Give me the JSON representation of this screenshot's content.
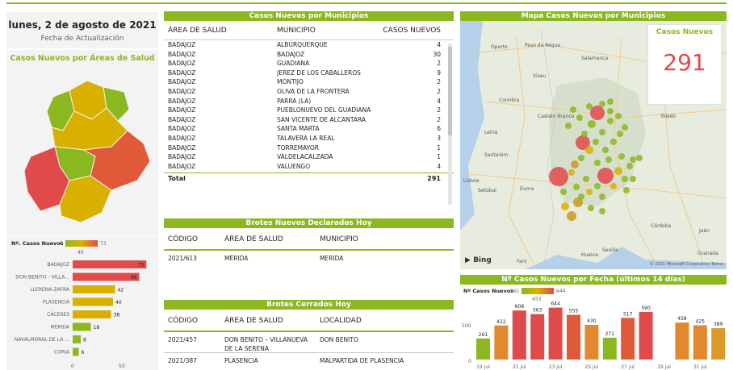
{
  "date": {
    "title": "lunes, 2 de agosto de 2021",
    "subtitle": "Fecha de Actualización"
  },
  "areas_map": {
    "title": "Casos Nuevos por Áreas de Salud"
  },
  "areas_chart": {
    "legend_label": "Nº. Casos Nuevos",
    "legend_min": "6",
    "legend_max": "73",
    "legend_mid": "40",
    "axis_ticks": [
      "0",
      "50"
    ],
    "colors": {
      "high": "#e04a4a",
      "mid": "#d9b000",
      "low": "#8bb81e"
    },
    "bars": [
      {
        "label": "BADAJOZ",
        "value": 73,
        "color": "#e04a4a"
      },
      {
        "label": "DON BENITO - VILLA...",
        "value": 66,
        "color": "#e04a4a"
      },
      {
        "label": "LLERENA-ZAFRA",
        "value": 42,
        "color": "#d9b000"
      },
      {
        "label": "PLASENCIA",
        "value": 40,
        "color": "#d9b000"
      },
      {
        "label": "CÁCERES",
        "value": 38,
        "color": "#d9b000"
      },
      {
        "label": "MÉRIDA",
        "value": 18,
        "color": "#8bb81e"
      },
      {
        "label": "NAVALMORAL DE LA ...",
        "value": 8,
        "color": "#8bb81e"
      },
      {
        "label": "CORIA",
        "value": 6,
        "color": "#8bb81e"
      }
    ]
  },
  "municipios": {
    "title": "Casos Nuevos por Municipios",
    "headers": {
      "area": "ÁREA DE SALUD",
      "municipio": "MUNICIPIO",
      "casos": "CASOS NUEVOS"
    },
    "rows": [
      {
        "area": "BADAJOZ",
        "municipio": "ALBURQUERQUE",
        "casos": "4"
      },
      {
        "area": "BADAJOZ",
        "municipio": "BADAJOZ",
        "casos": "30"
      },
      {
        "area": "BADAJOZ",
        "municipio": "GUADIANA",
        "casos": "2"
      },
      {
        "area": "BADAJOZ",
        "municipio": "JEREZ DE LOS CABALLEROS",
        "casos": "9"
      },
      {
        "area": "BADAJOZ",
        "municipio": "MONTIJO",
        "casos": "2"
      },
      {
        "area": "BADAJOZ",
        "municipio": "OLIVA DE LA FRONTERA",
        "casos": "2"
      },
      {
        "area": "BADAJOZ",
        "municipio": "PARRA (LA)",
        "casos": "4"
      },
      {
        "area": "BADAJOZ",
        "municipio": "PUEBLONUEVO DEL GUADIANA",
        "casos": "2"
      },
      {
        "area": "BADAJOZ",
        "municipio": "SAN VICENTE DE ALCANTARA",
        "casos": "2"
      },
      {
        "area": "BADAJOZ",
        "municipio": "SANTA MARTA",
        "casos": "6"
      },
      {
        "area": "BADAJOZ",
        "municipio": "TALAVERA LA REAL",
        "casos": "3"
      },
      {
        "area": "BADAJOZ",
        "municipio": "TORREMAYOR",
        "casos": "1"
      },
      {
        "area": "BADAJOZ",
        "municipio": "VALDELACALZADA",
        "casos": "1"
      },
      {
        "area": "BADAJOZ",
        "municipio": "VALUENGO",
        "casos": "4"
      }
    ],
    "total_label": "Total",
    "total_value": "291"
  },
  "brotes_nuevos": {
    "title": "Brotes Nuevos Declarados Hoy",
    "headers": {
      "codigo": "CÓDIGO",
      "area": "ÁREA DE SALUD",
      "municipio": "MUNICIPIO"
    },
    "rows": [
      {
        "codigo": "2021/613",
        "area": "MÉRIDA",
        "municipio": "MERIDA"
      }
    ]
  },
  "brotes_cerrados": {
    "title": "Brotes Cerrados Hoy",
    "headers": {
      "codigo": "CÓDIGO",
      "area": "ÁREA DE SALUD",
      "localidad": "LOCALIDAD"
    },
    "rows": [
      {
        "codigo": "2021/457",
        "area": "DON BENITO – VILLANUEVA DE LA SERENA",
        "localidad": "DON BENITO"
      },
      {
        "codigo": "2021/387",
        "area": "PLASENCIA",
        "localidad": "MALPARTIDA DE PLASENCIA"
      }
    ]
  },
  "mapa": {
    "title": "Mapa Casos Nuevos por Municipios",
    "kpi_label": "Casos Nuevos",
    "kpi_value": "291",
    "bing_label": "Bing",
    "copyright": "© 2021 Microsoft Corporation Terms",
    "places": [
      "Oporto",
      "Peso da Régua",
      "Viseu",
      "Salamanca",
      "Coimbra",
      "Castelo Branco",
      "Leiria",
      "Toledo",
      "Santarém",
      "Lisboa",
      "Setúbal",
      "Évora",
      "Córdoba",
      "Sevilla",
      "Huelva",
      "Faro",
      "Granada",
      "Jaén"
    ]
  },
  "fecha_chart": {
    "title": "Nº Casos Nuevos por Fecha (últimos 14 días)",
    "legend_label": "Nº Casos Nuevos",
    "legend_min": "261",
    "legend_max": "644",
    "legend_mid": "453",
    "y_ticks": [
      "500",
      "0"
    ],
    "x_labels": [
      "19 jul",
      "21 jul",
      "23 jul",
      "25 jul",
      "27 jul",
      "29 jul",
      "31 jul"
    ],
    "values": [
      261,
      422,
      608,
      563,
      644,
      555,
      430,
      271,
      517,
      590,
      null,
      458,
      425,
      389
    ],
    "colors": [
      "#8bb81e",
      "#e2882e",
      "#e04a4a",
      "#e04a4a",
      "#e04a4a",
      "#e05a3a",
      "#e2882e",
      "#8bb81e",
      "#e05a3a",
      "#e04a4a",
      "#ffffff",
      "#e2882e",
      "#e2882e",
      "#d99a2a"
    ]
  }
}
